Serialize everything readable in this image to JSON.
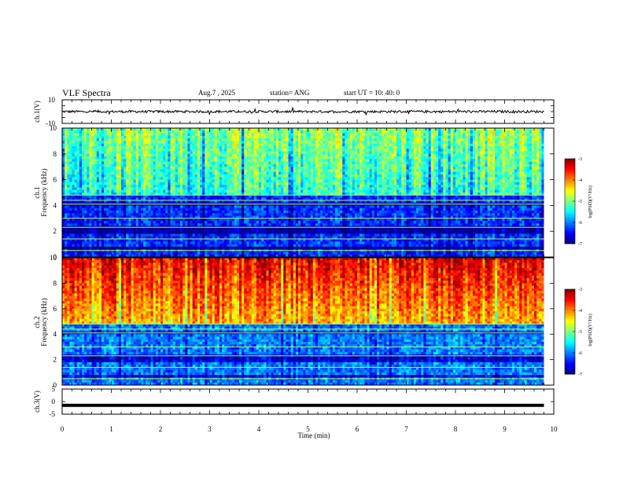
{
  "header": {
    "title": "VLF Spectra",
    "date": "Aug.7  , 2025",
    "station": "station= ANG",
    "start": "start  UT  =   10: 40: 0"
  },
  "chart_data": [
    {
      "type": "line",
      "panel": "ch1-waveform",
      "ylabel": "ch.1(V)",
      "ylim": [
        -10,
        10
      ],
      "yticks": [
        "10",
        "-10"
      ],
      "xlim": [
        0,
        10
      ],
      "series": [
        {
          "values_note_free": true,
          "baseline": 0,
          "noise_amplitude": 1
        }
      ]
    },
    {
      "type": "heatmap",
      "panel": "ch1-spectrogram",
      "ylabel_top": "ch.1",
      "ylabel": "Frequency  (kHz)",
      "ylim": [
        0,
        10
      ],
      "yticks": [
        "0",
        "2",
        "4",
        "6",
        "8",
        "10"
      ],
      "xlim": [
        0,
        9.8
      ],
      "colorbar": {
        "label": "log(PSD)(V²/Hz)",
        "range": [
          -7,
          -3
        ],
        "ticks": [
          "-3",
          "-4",
          "-5",
          "-6",
          "-7"
        ]
      },
      "level_upper_band": -5.3,
      "level_lower_band": -6.3
    },
    {
      "type": "heatmap",
      "panel": "ch2-spectrogram",
      "ylabel_top": "ch.2",
      "ylabel": "Frequency  (kHz)",
      "ylim": [
        0,
        10
      ],
      "yticks": [
        "0",
        "2",
        "4",
        "6",
        "8",
        "10"
      ],
      "xlim": [
        0,
        9.8
      ],
      "colorbar": {
        "label": "log(PSD)(V²/Hz)",
        "range": [
          -7,
          -3
        ],
        "ticks": [
          "-3",
          "-4",
          "-5",
          "-6",
          "-7"
        ]
      },
      "level_upper_band": -4.2,
      "level_lower_band": -6.0
    },
    {
      "type": "line",
      "panel": "ch3-waveform",
      "ylabel": "ch.3(V)",
      "ylim": [
        -5,
        5
      ],
      "yticks": [
        "5",
        "0",
        "-5"
      ],
      "xlim": [
        0,
        10
      ],
      "series": [
        {
          "baseline": -1.5
        }
      ]
    }
  ],
  "xaxis": {
    "label": "Time  (min)",
    "ticks": [
      "0",
      "1",
      "2",
      "3",
      "4",
      "5",
      "6",
      "7",
      "8",
      "9",
      "10"
    ]
  },
  "colors": {
    "low": "#00007f",
    "mid": "#00ff00",
    "high": "#ff0000"
  }
}
